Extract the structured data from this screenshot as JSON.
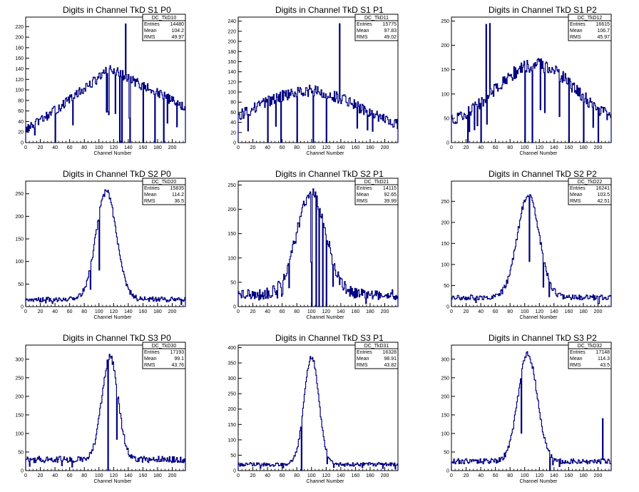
{
  "chart_data": [
    {
      "type": "histogram",
      "title": "Digits in Channel TkD S1 P0",
      "xlabel": "Channel Number",
      "xlim": [
        0,
        218
      ],
      "ylim": [
        0,
        238
      ],
      "xticks": [
        0,
        20,
        40,
        60,
        80,
        100,
        120,
        140,
        160,
        180,
        200
      ],
      "yticks": [
        0,
        20,
        40,
        60,
        80,
        100,
        120,
        140,
        160,
        180,
        200,
        220
      ],
      "stats": {
        "name": "DC_TkD10",
        "entries": "14480",
        "mean": "104.2",
        "rms": "49.97"
      },
      "profile": {
        "kind": "rise",
        "base": 25,
        "peak": 140,
        "peak_at": 115,
        "edge": 62,
        "noise": 10
      },
      "spikes": [
        [
          136,
          225
        ],
        [
          128,
          0
        ],
        [
          131,
          0
        ],
        [
          142,
          0
        ],
        [
          160,
          0
        ],
        [
          176,
          0
        ],
        [
          188,
          0
        ],
        [
          40,
          0
        ]
      ]
    },
    {
      "type": "histogram",
      "title": "Digits in Channel TkD S1 P1",
      "xlabel": "Channel Number",
      "xlim": [
        0,
        218
      ],
      "ylim": [
        0,
        248
      ],
      "xticks": [
        0,
        20,
        40,
        60,
        80,
        100,
        120,
        140,
        160,
        180,
        200
      ],
      "yticks": [
        0,
        20,
        40,
        60,
        80,
        100,
        120,
        140,
        160,
        180,
        200,
        220,
        240
      ],
      "stats": {
        "name": "DC_TkD11",
        "entries": "15775",
        "mean": "97.83",
        "rms": "49.02"
      },
      "profile": {
        "kind": "broad",
        "base": 20,
        "peak": 102,
        "peak_at": 95,
        "sigma": 70,
        "noise": 12
      },
      "spikes": [
        [
          138,
          235
        ],
        [
          58,
          0
        ],
        [
          40,
          0
        ],
        [
          80,
          0
        ],
        [
          102,
          0
        ],
        [
          120,
          0
        ]
      ]
    },
    {
      "type": "histogram",
      "title": "Digits in Channel TkD S1 P2",
      "xlabel": "Channel Number",
      "xlim": [
        0,
        218
      ],
      "ylim": [
        0,
        258
      ],
      "xticks": [
        0,
        20,
        40,
        60,
        80,
        100,
        120,
        140,
        160,
        180,
        200
      ],
      "yticks": [
        0,
        50,
        100,
        150,
        200,
        250
      ],
      "stats": {
        "name": "DC_TkD12",
        "entries": "16615",
        "mean": "106.7",
        "rms": "45.97"
      },
      "profile": {
        "kind": "broad",
        "base": 30,
        "peak": 160,
        "peak_at": 115,
        "sigma": 55,
        "noise": 14
      },
      "spikes": [
        [
          47,
          243
        ],
        [
          52,
          245
        ],
        [
          22,
          0
        ],
        [
          40,
          0
        ],
        [
          100,
          0
        ],
        [
          110,
          0
        ],
        [
          160,
          0
        ],
        [
          180,
          0
        ],
        [
          200,
          0
        ]
      ]
    },
    {
      "type": "histogram",
      "title": "Digits in Channel TkD S2 P0",
      "xlabel": "Channel Number",
      "xlim": [
        0,
        218
      ],
      "ylim": [
        0,
        278
      ],
      "xticks": [
        0,
        20,
        40,
        60,
        80,
        100,
        120,
        140,
        160,
        180,
        200
      ],
      "yticks": [
        0,
        50,
        100,
        150,
        200,
        250
      ],
      "stats": {
        "name": "DC_TkD20",
        "entries": "15835",
        "mean": "114.2",
        "rms": "36.5"
      },
      "profile": {
        "kind": "gauss",
        "base": 16,
        "peak": 255,
        "peak_at": 110,
        "sigma": 14,
        "noise": 8
      },
      "spikes": []
    },
    {
      "type": "histogram",
      "title": "Digits in Channel TkD S2 P1",
      "xlabel": "Channel Number",
      "xlim": [
        0,
        218
      ],
      "ylim": [
        0,
        258
      ],
      "xticks": [
        0,
        20,
        40,
        60,
        80,
        100,
        120,
        140,
        160,
        180,
        200
      ],
      "yticks": [
        0,
        50,
        100,
        150,
        200,
        250
      ],
      "stats": {
        "name": "DC_TkD21",
        "entries": "14115",
        "mean": "92.65",
        "rms": "39.99"
      },
      "profile": {
        "kind": "gauss",
        "base": 25,
        "peak": 230,
        "peak_at": 100,
        "sigma": 20,
        "noise": 15
      },
      "spikes": [
        [
          100,
          0
        ],
        [
          106,
          0
        ],
        [
          110,
          0
        ],
        [
          115,
          0
        ],
        [
          120,
          0
        ]
      ]
    },
    {
      "type": "histogram",
      "title": "Digits in Channel TkD S2 P2",
      "xlabel": "Channel Number",
      "xlim": [
        0,
        218
      ],
      "ylim": [
        0,
        298
      ],
      "xticks": [
        0,
        20,
        40,
        60,
        80,
        100,
        120,
        140,
        160,
        180,
        200
      ],
      "yticks": [
        0,
        50,
        100,
        150,
        200,
        250
      ],
      "stats": {
        "name": "DC_TkD22",
        "entries": "16241",
        "mean": "103.5",
        "rms": "42.51"
      },
      "profile": {
        "kind": "gauss",
        "base": 22,
        "peak": 265,
        "peak_at": 105,
        "sigma": 15,
        "noise": 9
      },
      "spikes": []
    },
    {
      "type": "histogram",
      "title": "Digits in Channel TkD S3 P0",
      "xlabel": "Channel Number",
      "xlim": [
        0,
        218
      ],
      "ylim": [
        0,
        338
      ],
      "xticks": [
        0,
        20,
        40,
        60,
        80,
        100,
        120,
        140,
        160,
        180,
        200
      ],
      "yticks": [
        0,
        50,
        100,
        150,
        200,
        250,
        300
      ],
      "stats": {
        "name": "DC_TkD30",
        "entries": "17193",
        "mean": "99.1",
        "rms": "43.76"
      },
      "profile": {
        "kind": "gauss",
        "base": 30,
        "peak": 305,
        "peak_at": 115,
        "sigma": 11,
        "noise": 12
      },
      "spikes": [
        [
          112,
          0
        ]
      ]
    },
    {
      "type": "histogram",
      "title": "Digits in Channel TkD S3 P1",
      "xlabel": "Channel Number",
      "xlim": [
        0,
        218
      ],
      "ylim": [
        0,
        408
      ],
      "xticks": [
        0,
        20,
        40,
        60,
        80,
        100,
        120,
        140,
        160,
        180,
        200
      ],
      "yticks": [
        0,
        50,
        100,
        150,
        200,
        250,
        300,
        350,
        400
      ],
      "stats": {
        "name": "DC_TkD31",
        "entries": "16328",
        "mean": "98.91",
        "rms": "43.82"
      },
      "profile": {
        "kind": "gauss",
        "base": 20,
        "peak": 370,
        "peak_at": 100,
        "sigma": 10,
        "noise": 9
      },
      "spikes": [
        [
          86,
          0
        ]
      ]
    },
    {
      "type": "histogram",
      "title": "Digits in Channel TkD S3 P2",
      "xlabel": "Channel Number",
      "xlim": [
        0,
        218
      ],
      "ylim": [
        0,
        338
      ],
      "xticks": [
        0,
        20,
        40,
        60,
        80,
        100,
        120,
        140,
        160,
        180,
        200
      ],
      "yticks": [
        0,
        50,
        100,
        150,
        200,
        250,
        300
      ],
      "stats": {
        "name": "DC_TkD32",
        "entries": "17148",
        "mean": "114.3",
        "rms": "43.5"
      },
      "profile": {
        "kind": "gauss",
        "base": 25,
        "peak": 315,
        "peak_at": 104,
        "sigma": 13,
        "noise": 10
      },
      "spikes": [
        [
          134,
          0
        ],
        [
          206,
          140
        ]
      ]
    }
  ],
  "labels": {
    "entries": "Entries",
    "mean": "Mean",
    "rms": "RMS"
  },
  "colors": {
    "line": "#000080",
    "frame": "#000000",
    "background": "#ffffff"
  }
}
